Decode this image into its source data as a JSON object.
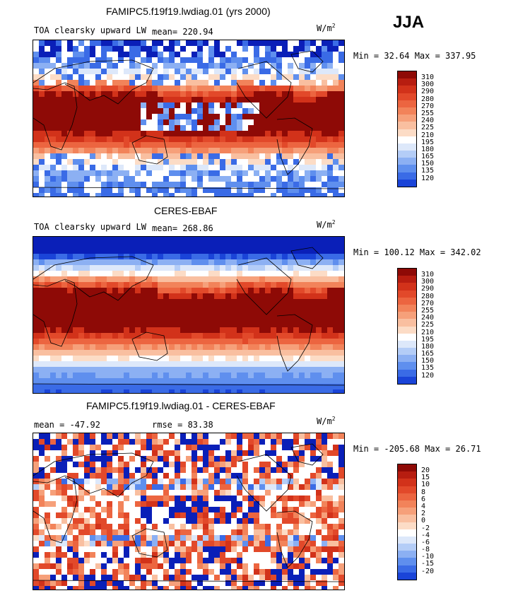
{
  "season": "JJA",
  "colors": {
    "model_scale": [
      "#08007a",
      "#0a1fb8",
      "#1a44d8",
      "#3a6be6",
      "#5f8fee",
      "#8cb0f3",
      "#b4cdf7",
      "#dde8fa",
      "#ffffff",
      "#fcdcc6",
      "#f9bfa0",
      "#f6a07a",
      "#f2835a",
      "#ec6540",
      "#e2492a",
      "#d2321a",
      "#b71d10",
      "#8e0a06"
    ],
    "diff_scale": [
      "#08007a",
      "#0a1fb8",
      "#1a44d8",
      "#3a6be6",
      "#5f8fee",
      "#8cb0f3",
      "#b4cdf7",
      "#dde8fa",
      "#ffffff",
      "#fcdcc6",
      "#f9bfa0",
      "#f6a07a",
      "#f2835a",
      "#ec6540",
      "#e2492a",
      "#d2321a",
      "#b71d10",
      "#8e0a06"
    ]
  },
  "panels": [
    {
      "title": "FAMIPC5.f19f19.lwdiag.01 (yrs 2000)",
      "variable": "TOA clearsky upward LW",
      "mean_text": "mean= 220.94",
      "units_base": "W/m",
      "units_exp": "2",
      "minmax": "Min =  32.64 Max = 337.95",
      "ticks": [
        "310",
        "300",
        "290",
        "280",
        "270",
        "255",
        "240",
        "225",
        "210",
        "195",
        "180",
        "165",
        "150",
        "135",
        "120"
      ],
      "field": "model"
    },
    {
      "title": "CERES-EBAF",
      "variable": "TOA clearsky upward LW",
      "mean_text": "mean= 268.86",
      "units_base": "W/m",
      "units_exp": "2",
      "minmax": "Min = 100.12 Max = 342.02",
      "ticks": [
        "310",
        "300",
        "290",
        "280",
        "270",
        "255",
        "240",
        "225",
        "210",
        "195",
        "180",
        "165",
        "150",
        "135",
        "120"
      ],
      "field": "obs"
    },
    {
      "title": "FAMIPC5.f19f19.lwdiag.01 - CERES-EBAF",
      "mean_text": "mean = -47.92",
      "rmse_text": "rmse =  83.38",
      "units_base": "W/m",
      "units_exp": "2",
      "minmax": "Min = -205.68 Max =  26.71",
      "ticks": [
        "20",
        "15",
        "10",
        "8",
        "6",
        "4",
        "2",
        "0",
        "-2",
        "-4",
        "-6",
        "-8",
        "-10",
        "-15",
        "-20"
      ],
      "field": "diff"
    }
  ]
}
